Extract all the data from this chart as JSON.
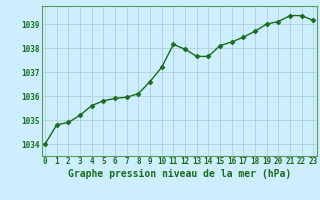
{
  "x": [
    0,
    1,
    2,
    3,
    4,
    5,
    6,
    7,
    8,
    9,
    10,
    11,
    12,
    13,
    14,
    15,
    16,
    17,
    18,
    19,
    20,
    21,
    22,
    23
  ],
  "y": [
    1034.0,
    1034.8,
    1034.9,
    1035.2,
    1035.6,
    1035.8,
    1035.9,
    1035.95,
    1036.1,
    1036.6,
    1037.2,
    1038.15,
    1037.95,
    1037.65,
    1037.65,
    1038.1,
    1038.25,
    1038.45,
    1038.7,
    1039.0,
    1039.1,
    1039.35,
    1039.35,
    1039.15
  ],
  "line_color": "#1a6b1a",
  "marker": "D",
  "marker_size": 2.5,
  "bg_color": "#cceeff",
  "grid_color": "#aacccc",
  "xlabel": "Graphe pression niveau de la mer (hPa)",
  "xlabel_fontsize": 7,
  "yticks": [
    1034,
    1035,
    1036,
    1037,
    1038,
    1039
  ],
  "xticks": [
    0,
    1,
    2,
    3,
    4,
    5,
    6,
    7,
    8,
    9,
    10,
    11,
    12,
    13,
    14,
    15,
    16,
    17,
    18,
    19,
    20,
    21,
    22,
    23
  ],
  "ylim": [
    1033.5,
    1039.75
  ],
  "xlim": [
    -0.3,
    23.3
  ],
  "tick_fontsize": 5.5,
  "tick_color": "#1a6b1a",
  "spine_color": "#5a9a5a",
  "linewidth": 1.0
}
